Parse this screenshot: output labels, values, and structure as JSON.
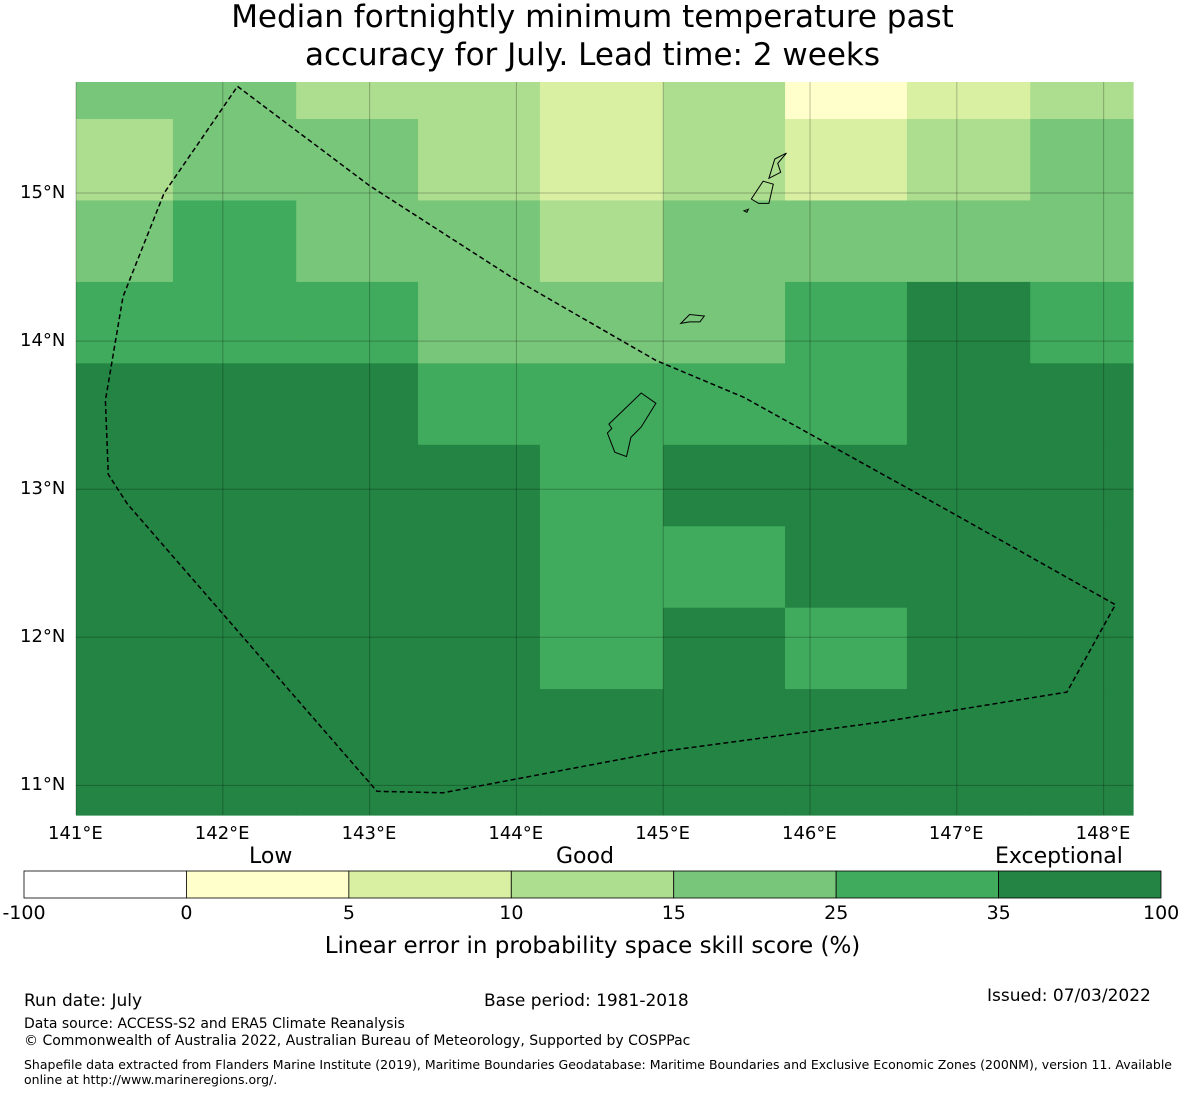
{
  "title_line1": "Median fortnightly minimum temperature past",
  "title_line2": "accuracy for July. Lead time: 2 weeks",
  "map": {
    "lon_range": [
      141.0,
      148.2
    ],
    "lat_range": [
      10.8,
      15.75
    ],
    "x_ticks": [
      {
        "value": 141,
        "label": "141°E"
      },
      {
        "value": 142,
        "label": "142°E"
      },
      {
        "value": 143,
        "label": "143°E"
      },
      {
        "value": 144,
        "label": "144°E"
      },
      {
        "value": 145,
        "label": "145°E"
      },
      {
        "value": 146,
        "label": "146°E"
      },
      {
        "value": 147,
        "label": "147°E"
      },
      {
        "value": 148,
        "label": "148°E"
      }
    ],
    "y_ticks": [
      {
        "value": 15,
        "label": "15°N"
      },
      {
        "value": 14,
        "label": "14°N"
      },
      {
        "value": 13,
        "label": "13°N"
      },
      {
        "value": 12,
        "label": "12°N"
      },
      {
        "value": 11,
        "label": "11°N"
      }
    ],
    "grid_columns_lon": [
      141.0,
      141.66,
      142.5,
      143.33,
      144.16,
      145.0,
      145.83,
      146.66,
      147.5,
      148.2
    ],
    "grid_rows_lat": [
      15.75,
      15.5,
      14.95,
      14.4,
      13.85,
      13.3,
      12.75,
      12.2,
      11.65,
      10.8
    ],
    "category_colors": [
      "#ffffff",
      "#ffffcc",
      "#d9f0a3",
      "#addd8e",
      "#78c679",
      "#41ab5d",
      "#238443"
    ],
    "cells": [
      [
        4,
        4,
        3,
        3,
        2,
        3,
        1,
        2,
        3
      ],
      [
        3,
        4,
        4,
        3,
        2,
        3,
        2,
        3,
        4
      ],
      [
        4,
        5,
        4,
        4,
        3,
        4,
        4,
        4,
        4
      ],
      [
        5,
        5,
        5,
        4,
        4,
        4,
        5,
        6,
        5
      ],
      [
        6,
        6,
        6,
        5,
        5,
        5,
        5,
        6,
        6
      ],
      [
        6,
        6,
        6,
        6,
        5,
        6,
        6,
        6,
        6
      ],
      [
        6,
        6,
        6,
        6,
        5,
        5,
        6,
        6,
        6
      ],
      [
        6,
        6,
        6,
        6,
        5,
        6,
        5,
        6,
        6
      ],
      [
        6,
        6,
        6,
        6,
        6,
        6,
        6,
        6,
        6
      ]
    ],
    "eez_boundary": [
      [
        142.1,
        15.72
      ],
      [
        143.0,
        15.05
      ],
      [
        143.97,
        14.43
      ],
      [
        144.95,
        13.87
      ],
      [
        145.55,
        13.62
      ],
      [
        146.95,
        12.85
      ],
      [
        148.08,
        12.22
      ],
      [
        147.75,
        11.63
      ],
      [
        146.5,
        11.43
      ],
      [
        145.0,
        11.23
      ],
      [
        143.5,
        10.95
      ],
      [
        143.05,
        10.96
      ],
      [
        141.35,
        12.9
      ],
      [
        141.22,
        13.1
      ],
      [
        141.2,
        13.6
      ],
      [
        141.32,
        14.3
      ],
      [
        141.6,
        15.0
      ],
      [
        142.1,
        15.72
      ]
    ],
    "islands": [
      [
        [
          144.63,
          13.44
        ],
        [
          144.85,
          13.65
        ],
        [
          144.95,
          13.58
        ],
        [
          144.85,
          13.42
        ],
        [
          144.78,
          13.35
        ],
        [
          144.75,
          13.22
        ],
        [
          144.67,
          13.25
        ],
        [
          144.62,
          13.38
        ],
        [
          144.65,
          13.41
        ],
        [
          144.63,
          13.44
        ]
      ],
      [
        [
          145.12,
          14.12
        ],
        [
          145.18,
          14.18
        ],
        [
          145.28,
          14.17
        ],
        [
          145.25,
          14.13
        ],
        [
          145.18,
          14.13
        ],
        [
          145.12,
          14.12
        ]
      ],
      [
        [
          145.55,
          14.88
        ],
        [
          145.58,
          14.89
        ],
        [
          145.57,
          14.87
        ],
        [
          145.55,
          14.88
        ]
      ],
      [
        [
          145.6,
          14.96
        ],
        [
          145.68,
          15.08
        ],
        [
          145.75,
          15.06
        ],
        [
          145.72,
          14.93
        ],
        [
          145.65,
          14.93
        ],
        [
          145.6,
          14.96
        ]
      ],
      [
        [
          145.72,
          15.1
        ],
        [
          145.76,
          15.23
        ],
        [
          145.84,
          15.27
        ],
        [
          145.78,
          15.2
        ],
        [
          145.8,
          15.14
        ],
        [
          145.72,
          15.1
        ]
      ]
    ]
  },
  "legend": {
    "word_low": "Low",
    "word_good": "Good",
    "word_exceptional": "Exceptional",
    "ticks": [
      "-100",
      "0",
      "5",
      "10",
      "15",
      "25",
      "35",
      "100"
    ],
    "label": "Linear error in probability space skill score (%)"
  },
  "footer": {
    "run_date": "Run date: July",
    "base_period": "Base period: 1981-2018",
    "issued": "Issued: 07/03/2022",
    "data_source": "Data source: ACCESS-S2 and ERA5 Climate Reanalysis",
    "copyright": "© Commonwealth of Australia 2022, Australian Bureau of Meteorology, Supported by COSPPac",
    "shapefile": "Shapefile data extracted from Flanders Marine Institute (2019), Maritime Boundaries Geodatabase: Maritime Boundaries and Exclusive Economic Zones (200NM), version 11. Available online at http://www.marineregions.org/."
  }
}
